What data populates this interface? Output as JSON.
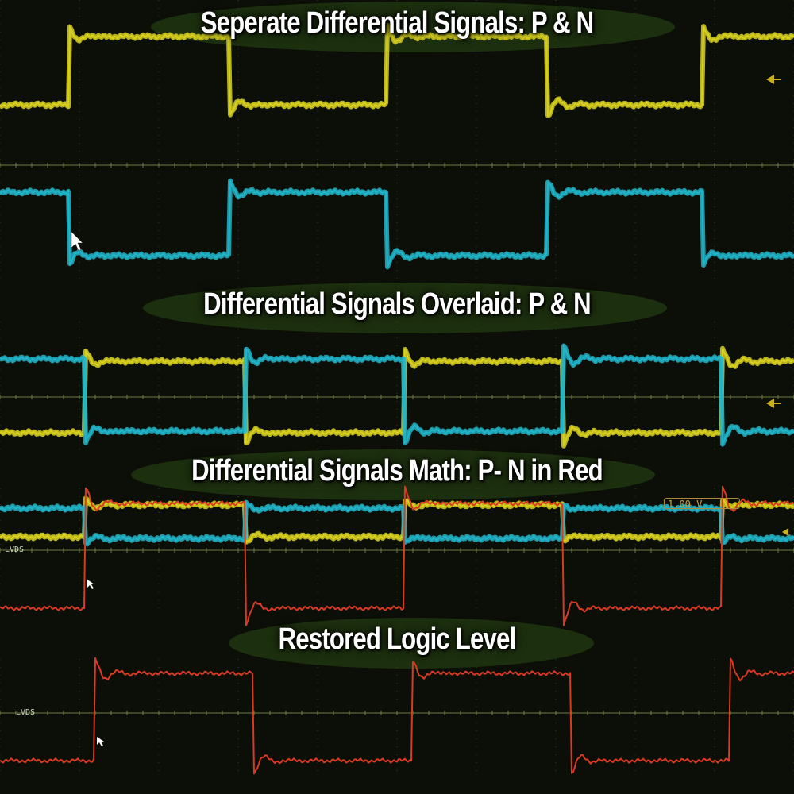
{
  "colors": {
    "background": "#0b0f07",
    "grid": "#3a4a22",
    "axis": "#6f7d40",
    "p_signal": "#d8d020",
    "n_signal": "#22b4c8",
    "math_signal": "#d83a22"
  },
  "icons": [
    "cursor-arrow-icon",
    "trigger-level-marker-icon"
  ],
  "chart_data": [
    {
      "type": "line",
      "title": "Seperate Differential Signals: P & N",
      "panel_layout": "stacked",
      "grid": true,
      "series": [
        {
          "key": "P",
          "color": "#d8d020",
          "edges": [
            {
              "x": 0.087,
              "dir": "up"
            },
            {
              "x": 0.29,
              "dir": "down"
            },
            {
              "x": 0.487,
              "dir": "up"
            },
            {
              "x": 0.69,
              "dir": "down"
            },
            {
              "x": 0.885,
              "dir": "up"
            }
          ],
          "start": "low"
        },
        {
          "key": "N",
          "color": "#22b4c8",
          "edges": [
            {
              "x": 0.087,
              "dir": "down"
            },
            {
              "x": 0.29,
              "dir": "up"
            },
            {
              "x": 0.487,
              "dir": "down"
            },
            {
              "x": 0.69,
              "dir": "up"
            },
            {
              "x": 0.885,
              "dir": "down"
            }
          ],
          "start": "high"
        }
      ]
    },
    {
      "type": "line",
      "title": "Differential Signals Overlaid: P & N",
      "panel_layout": "overlaid",
      "grid": true,
      "series": [
        {
          "key": "P",
          "color": "#d8d020",
          "edges": [
            {
              "x": 0.108,
              "dir": "up"
            },
            {
              "x": 0.31,
              "dir": "down"
            },
            {
              "x": 0.51,
              "dir": "up"
            },
            {
              "x": 0.71,
              "dir": "down"
            },
            {
              "x": 0.91,
              "dir": "up"
            }
          ],
          "start": "low"
        },
        {
          "key": "N",
          "color": "#22b4c8",
          "edges": [
            {
              "x": 0.108,
              "dir": "down"
            },
            {
              "x": 0.31,
              "dir": "up"
            },
            {
              "x": 0.51,
              "dir": "down"
            },
            {
              "x": 0.71,
              "dir": "up"
            },
            {
              "x": 0.91,
              "dir": "down"
            }
          ],
          "start": "high"
        }
      ]
    },
    {
      "type": "line",
      "title": "Differential Signals Math: P- N in Red",
      "panel_layout": "overlaid",
      "grid": true,
      "channel_label": "LVDS",
      "scale_readout": "1.00 V",
      "series": [
        {
          "key": "P",
          "color": "#d8d020",
          "edges": [
            {
              "x": 0.108,
              "dir": "up"
            },
            {
              "x": 0.31,
              "dir": "down"
            },
            {
              "x": 0.51,
              "dir": "up"
            },
            {
              "x": 0.71,
              "dir": "down"
            },
            {
              "x": 0.91,
              "dir": "up"
            }
          ],
          "start": "low"
        },
        {
          "key": "N",
          "color": "#22b4c8",
          "edges": [
            {
              "x": 0.108,
              "dir": "down"
            },
            {
              "x": 0.31,
              "dir": "up"
            },
            {
              "x": 0.51,
              "dir": "down"
            },
            {
              "x": 0.71,
              "dir": "up"
            },
            {
              "x": 0.91,
              "dir": "down"
            }
          ],
          "start": "high"
        },
        {
          "key": "P-N",
          "color": "#d83a22",
          "edges": [
            {
              "x": 0.108,
              "dir": "up"
            },
            {
              "x": 0.31,
              "dir": "down"
            },
            {
              "x": 0.51,
              "dir": "up"
            },
            {
              "x": 0.71,
              "dir": "down"
            },
            {
              "x": 0.91,
              "dir": "up"
            }
          ],
          "start": "low"
        }
      ]
    },
    {
      "type": "line",
      "title": "Restored Logic Level",
      "panel_layout": "single",
      "grid": true,
      "channel_label": "LVDS",
      "series": [
        {
          "key": "P-N",
          "color": "#d83a22",
          "edges": [
            {
              "x": 0.12,
              "dir": "up"
            },
            {
              "x": 0.32,
              "dir": "down"
            },
            {
              "x": 0.52,
              "dir": "up"
            },
            {
              "x": 0.72,
              "dir": "down"
            },
            {
              "x": 0.92,
              "dir": "up"
            }
          ],
          "start": "low"
        }
      ]
    }
  ]
}
